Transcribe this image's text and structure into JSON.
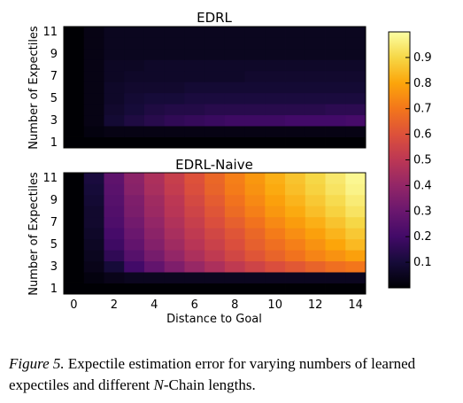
{
  "chart_data": [
    {
      "type": "heatmap",
      "title": "EDRL",
      "ylabel": "Number of Expectiles",
      "xlabel": "",
      "x": [
        0,
        1,
        2,
        3,
        4,
        5,
        6,
        7,
        8,
        9,
        10,
        11,
        12,
        13,
        14
      ],
      "y": [
        1,
        2,
        3,
        4,
        5,
        6,
        7,
        8,
        9,
        10,
        11
      ],
      "y_tick_labels": [
        "1",
        "3",
        "5",
        "7",
        "9",
        "11"
      ],
      "x_tick_labels": [],
      "colorscale": "inferno",
      "clim": [
        0,
        1
      ],
      "values_by_expectiles": {
        "11": [
          0.0,
          0.03,
          0.05,
          0.05,
          0.05,
          0.05,
          0.05,
          0.05,
          0.05,
          0.05,
          0.05,
          0.05,
          0.05,
          0.05,
          0.05
        ],
        "10": [
          0.0,
          0.03,
          0.05,
          0.05,
          0.05,
          0.05,
          0.05,
          0.05,
          0.05,
          0.05,
          0.05,
          0.05,
          0.05,
          0.05,
          0.05
        ],
        "9": [
          0.0,
          0.03,
          0.05,
          0.05,
          0.05,
          0.05,
          0.05,
          0.05,
          0.05,
          0.05,
          0.05,
          0.05,
          0.05,
          0.05,
          0.05
        ],
        "8": [
          0.0,
          0.03,
          0.06,
          0.06,
          0.07,
          0.07,
          0.07,
          0.07,
          0.07,
          0.07,
          0.07,
          0.07,
          0.07,
          0.07,
          0.07
        ],
        "7": [
          0.0,
          0.03,
          0.06,
          0.07,
          0.07,
          0.07,
          0.07,
          0.07,
          0.07,
          0.08,
          0.08,
          0.08,
          0.08,
          0.08,
          0.08
        ],
        "6": [
          0.0,
          0.03,
          0.07,
          0.08,
          0.08,
          0.08,
          0.09,
          0.09,
          0.09,
          0.09,
          0.09,
          0.09,
          0.09,
          0.09,
          0.09
        ],
        "5": [
          0.0,
          0.03,
          0.07,
          0.09,
          0.1,
          0.1,
          0.11,
          0.11,
          0.11,
          0.11,
          0.11,
          0.11,
          0.11,
          0.11,
          0.11
        ],
        "4": [
          0.0,
          0.03,
          0.08,
          0.1,
          0.12,
          0.13,
          0.13,
          0.14,
          0.14,
          0.14,
          0.14,
          0.14,
          0.14,
          0.15,
          0.15
        ],
        "3": [
          0.0,
          0.03,
          0.09,
          0.12,
          0.14,
          0.16,
          0.17,
          0.18,
          0.19,
          0.19,
          0.19,
          0.2,
          0.2,
          0.2,
          0.21
        ],
        "2": [
          0.0,
          0.02,
          0.03,
          0.03,
          0.03,
          0.03,
          0.03,
          0.03,
          0.03,
          0.03,
          0.03,
          0.03,
          0.03,
          0.03,
          0.03
        ],
        "1": [
          0.0,
          0.0,
          0.0,
          0.0,
          0.0,
          0.0,
          0.0,
          0.0,
          0.0,
          0.0,
          0.0,
          0.0,
          0.0,
          0.0,
          0.0
        ]
      }
    },
    {
      "type": "heatmap",
      "title": "EDRL-Naive",
      "ylabel": "Number of Expectiles",
      "xlabel": "Distance to Goal",
      "x": [
        0,
        1,
        2,
        3,
        4,
        5,
        6,
        7,
        8,
        9,
        10,
        11,
        12,
        13,
        14
      ],
      "y": [
        1,
        2,
        3,
        4,
        5,
        6,
        7,
        8,
        9,
        10,
        11
      ],
      "y_tick_labels": [
        "1",
        "3",
        "5",
        "7",
        "9",
        "11"
      ],
      "x_tick_labels": [
        "0",
        "2",
        "4",
        "6",
        "8",
        "10",
        "12",
        "14"
      ],
      "colorscale": "inferno",
      "clim": [
        0,
        1
      ],
      "values_by_expectiles": {
        "11": [
          0.0,
          0.11,
          0.27,
          0.38,
          0.46,
          0.53,
          0.6,
          0.66,
          0.72,
          0.77,
          0.82,
          0.86,
          0.9,
          0.94,
          0.98
        ],
        "10": [
          0.0,
          0.1,
          0.26,
          0.37,
          0.45,
          0.52,
          0.59,
          0.65,
          0.71,
          0.76,
          0.81,
          0.85,
          0.89,
          0.93,
          0.97
        ],
        "9": [
          0.0,
          0.09,
          0.25,
          0.35,
          0.43,
          0.5,
          0.57,
          0.63,
          0.69,
          0.74,
          0.79,
          0.83,
          0.87,
          0.91,
          0.95
        ],
        "8": [
          0.0,
          0.08,
          0.24,
          0.34,
          0.42,
          0.49,
          0.55,
          0.61,
          0.67,
          0.72,
          0.77,
          0.81,
          0.85,
          0.89,
          0.93
        ],
        "7": [
          0.0,
          0.08,
          0.23,
          0.32,
          0.4,
          0.47,
          0.53,
          0.59,
          0.64,
          0.69,
          0.74,
          0.78,
          0.82,
          0.86,
          0.9
        ],
        "6": [
          0.0,
          0.07,
          0.21,
          0.3,
          0.38,
          0.45,
          0.51,
          0.56,
          0.61,
          0.66,
          0.71,
          0.75,
          0.79,
          0.83,
          0.87
        ],
        "5": [
          0.0,
          0.06,
          0.19,
          0.28,
          0.36,
          0.43,
          0.49,
          0.54,
          0.59,
          0.64,
          0.68,
          0.72,
          0.76,
          0.8,
          0.84
        ],
        "4": [
          0.0,
          0.05,
          0.16,
          0.25,
          0.33,
          0.4,
          0.46,
          0.51,
          0.56,
          0.61,
          0.65,
          0.69,
          0.73,
          0.76,
          0.79
        ],
        "3": [
          0.0,
          0.04,
          0.1,
          0.2,
          0.28,
          0.35,
          0.41,
          0.46,
          0.51,
          0.55,
          0.59,
          0.62,
          0.65,
          0.68,
          0.7
        ],
        "2": [
          0.0,
          0.02,
          0.04,
          0.05,
          0.05,
          0.05,
          0.05,
          0.05,
          0.05,
          0.05,
          0.05,
          0.05,
          0.05,
          0.05,
          0.05
        ],
        "1": [
          0.0,
          0.0,
          0.0,
          0.0,
          0.0,
          0.0,
          0.0,
          0.0,
          0.0,
          0.0,
          0.0,
          0.0,
          0.0,
          0.0,
          0.0
        ]
      }
    }
  ],
  "colorbar": {
    "ticks": [
      "0.1",
      "0.2",
      "0.3",
      "0.4",
      "0.5",
      "0.6",
      "0.7",
      "0.8",
      "0.9"
    ],
    "range": [
      0,
      1
    ]
  },
  "caption": {
    "figure_label": "Figure 5.",
    "text_part1": "Expectile estimation error for varying numbers of learned expectiles and different",
    "math_symbol": "N",
    "text_part2": "-Chain lengths."
  }
}
